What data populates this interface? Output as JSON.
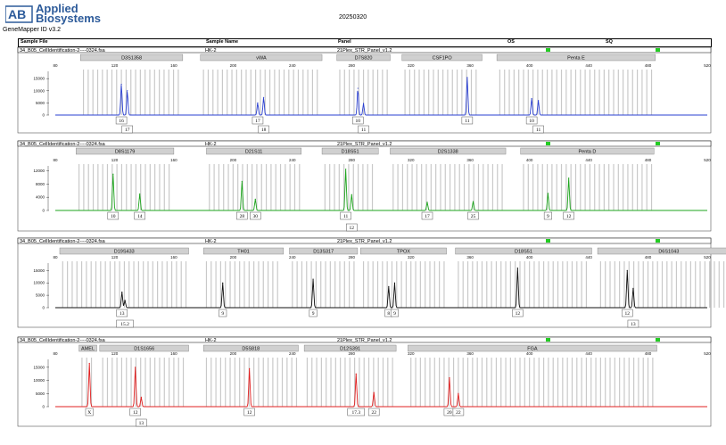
{
  "header": {
    "logo_text_1": "Applied",
    "logo_text_2": "Biosystems",
    "version": "GeneMapper ID v3.2",
    "date": "20250320",
    "columns": {
      "sample_file": "Sample File",
      "sample_name": "Sample Name",
      "panel": "Panel",
      "os": "OS",
      "sq": "SQ"
    }
  },
  "colors": {
    "blue": "#2a3fd1",
    "green": "#1ea51e",
    "black": "#111111",
    "red": "#e02020",
    "bin": "#c9c9c9",
    "quality": "#22cc22"
  },
  "chart_data": [
    {
      "type": "line",
      "dye": "blue",
      "sample_file": "34_B05_CellIdentification-2----0324.fsa",
      "sample_name": "HK-2",
      "panel": "21Plex_STR_Panel_v1.2",
      "x_ticks": [
        "80",
        "120",
        "160",
        "200",
        "240",
        "280",
        "320",
        "360",
        "400",
        "440",
        "480",
        "520"
      ],
      "xlim": [
        80,
        520
      ],
      "y_ticks": [
        "15000",
        "10000",
        "5000",
        "0"
      ],
      "ylim": [
        0,
        18000
      ],
      "markers": [
        {
          "name": "D3S1358",
          "start": 97,
          "end": 166
        },
        {
          "name": "vWA",
          "start": 178,
          "end": 260
        },
        {
          "name": "D7S820",
          "start": 270,
          "end": 306
        },
        {
          "name": "CSF1PO",
          "start": 314,
          "end": 368
        },
        {
          "name": "Penta E",
          "start": 378,
          "end": 485
        }
      ],
      "peaks": [
        {
          "x": 124.6,
          "y": 12700,
          "label": "16"
        },
        {
          "x": 128.6,
          "y": 10000,
          "label": "17"
        },
        {
          "x": 216.6,
          "y": 5000,
          "label": "17"
        },
        {
          "x": 220.6,
          "y": 7200,
          "label": "18"
        },
        {
          "x": 284.2,
          "y": 11000,
          "label": "10"
        },
        {
          "x": 288.0,
          "y": 4800,
          "label": "11"
        },
        {
          "x": 358.0,
          "y": 15500,
          "label": "11"
        },
        {
          "x": 401.5,
          "y": 6800,
          "label": "10"
        },
        {
          "x": 406.0,
          "y": 6000,
          "label": "11"
        }
      ],
      "allele_labels": [
        {
          "x": 124.6,
          "row": 1,
          "label": "16"
        },
        {
          "x": 128.6,
          "row": 2,
          "label": "17"
        },
        {
          "x": 216.6,
          "row": 1,
          "label": "17"
        },
        {
          "x": 220.6,
          "row": 2,
          "label": "18"
        },
        {
          "x": 284.2,
          "row": 1,
          "label": "10"
        },
        {
          "x": 288.0,
          "row": 2,
          "label": "11"
        },
        {
          "x": 358.0,
          "row": 1,
          "label": "11"
        },
        {
          "x": 401.5,
          "row": 1,
          "label": "10"
        },
        {
          "x": 406.0,
          "row": 2,
          "label": "11"
        }
      ]
    },
    {
      "type": "line",
      "dye": "green",
      "sample_file": "34_B05_CellIdentification-2----0324.fsa",
      "sample_name": "HK-2",
      "panel": "21Plex_STR_Panel_v1.2",
      "x_ticks": [
        "80",
        "120",
        "160",
        "200",
        "240",
        "280",
        "320",
        "360",
        "400",
        "440",
        "480",
        "520"
      ],
      "xlim": [
        80,
        520
      ],
      "y_ticks": [
        "12000",
        "8000",
        "4000",
        "0"
      ],
      "ylim": [
        0,
        13500
      ],
      "markers": [
        {
          "name": "D8S1179",
          "start": 94,
          "end": 160
        },
        {
          "name": "D21S11",
          "start": 182,
          "end": 246
        },
        {
          "name": "D18S51",
          "start": 260,
          "end": 298
        },
        {
          "name": "D2S1338",
          "start": 306,
          "end": 384
        },
        {
          "name": "Penta D",
          "start": 394,
          "end": 484
        }
      ],
      "peaks": [
        {
          "x": 119.0,
          "y": 11000,
          "label": "10"
        },
        {
          "x": 137.0,
          "y": 5000,
          "label": "14"
        },
        {
          "x": 206.0,
          "y": 8800,
          "label": "28"
        },
        {
          "x": 215.0,
          "y": 3400,
          "label": "30"
        },
        {
          "x": 276.0,
          "y": 12500,
          "label": "11"
        },
        {
          "x": 280.0,
          "y": 4800,
          "label": "12"
        },
        {
          "x": 331.0,
          "y": 2500,
          "label": "17"
        },
        {
          "x": 362.0,
          "y": 2700,
          "label": "25"
        },
        {
          "x": 412.5,
          "y": 5200,
          "label": "9"
        },
        {
          "x": 426.5,
          "y": 9800,
          "label": "12"
        }
      ],
      "allele_labels": [
        {
          "x": 119.0,
          "row": 1,
          "label": "10"
        },
        {
          "x": 137.0,
          "row": 1,
          "label": "14"
        },
        {
          "x": 206.0,
          "row": 1,
          "label": "28"
        },
        {
          "x": 215.0,
          "row": 1,
          "label": "30"
        },
        {
          "x": 276.0,
          "row": 1,
          "label": "11"
        },
        {
          "x": 280.0,
          "row": 2,
          "label": "12"
        },
        {
          "x": 331.0,
          "row": 1,
          "label": "17"
        },
        {
          "x": 362.0,
          "row": 1,
          "label": "25"
        },
        {
          "x": 412.5,
          "row": 1,
          "label": "9"
        },
        {
          "x": 426.5,
          "row": 1,
          "label": "12"
        }
      ]
    },
    {
      "type": "line",
      "dye": "black",
      "sample_file": "34_B05_CellIdentification-2----0324.fsa",
      "sample_name": "HK-2",
      "panel": "21Plex_STR_Panel_v1.2",
      "x_ticks": [
        "80",
        "120",
        "160",
        "200",
        "240",
        "280",
        "320",
        "360",
        "400",
        "440",
        "480",
        "520"
      ],
      "xlim": [
        80,
        520
      ],
      "y_ticks": [
        "15000",
        "10000",
        "5000",
        "0"
      ],
      "ylim": [
        0,
        18000
      ],
      "markers": [
        {
          "name": "D19S433",
          "start": 83,
          "end": 170
        },
        {
          "name": "TH01",
          "start": 180,
          "end": 234
        },
        {
          "name": "D13S317",
          "start": 238,
          "end": 284
        },
        {
          "name": "TPOX",
          "start": 286,
          "end": 344
        },
        {
          "name": "D18S51",
          "start": 350,
          "end": 442
        },
        {
          "name": "D6S1043",
          "start": 446,
          "end": 542
        }
      ],
      "peaks": [
        {
          "x": 125.0,
          "y": 6300,
          "label": "13"
        },
        {
          "x": 127.0,
          "y": 3000,
          "label": "15.2"
        },
        {
          "x": 193.0,
          "y": 10000,
          "label": "9"
        },
        {
          "x": 254.0,
          "y": 11500,
          "label": "9"
        },
        {
          "x": 305.0,
          "y": 8500,
          "label": "8"
        },
        {
          "x": 309.0,
          "y": 10000,
          "label": "9"
        },
        {
          "x": 392.0,
          "y": 16000,
          "label": "12"
        },
        {
          "x": 466.0,
          "y": 15000,
          "label": "12"
        },
        {
          "x": 470.0,
          "y": 7800,
          "label": "13"
        }
      ],
      "allele_labels": [
        {
          "x": 125.0,
          "row": 1,
          "label": "13"
        },
        {
          "x": 127.0,
          "row": 2,
          "label": "15.2"
        },
        {
          "x": 193.0,
          "row": 1,
          "label": "9"
        },
        {
          "x": 254.0,
          "row": 1,
          "label": "9"
        },
        {
          "x": 305.0,
          "row": 1,
          "label": "8"
        },
        {
          "x": 309.0,
          "row": 1,
          "label": "9"
        },
        {
          "x": 392.0,
          "row": 1,
          "label": "12"
        },
        {
          "x": 466.0,
          "row": 1,
          "label": "12"
        },
        {
          "x": 470.0,
          "row": 2,
          "label": "13"
        }
      ]
    },
    {
      "type": "line",
      "dye": "red",
      "sample_file": "34_B05_CellIdentification-2----0324.fsa",
      "sample_name": "HK-2",
      "panel": "21Plex_STR_Panel_v1.2",
      "x_ticks": [
        "80",
        "120",
        "160",
        "200",
        "240",
        "280",
        "320",
        "360",
        "400",
        "440",
        "480",
        "520"
      ],
      "xlim": [
        80,
        520
      ],
      "y_ticks": [
        "15000",
        "10000",
        "5000",
        "0"
      ],
      "ylim": [
        0,
        18000
      ],
      "markers": [
        {
          "name": "AMEL",
          "start": 96,
          "end": 108
        },
        {
          "name": "D1S1656",
          "start": 110,
          "end": 170
        },
        {
          "name": "D5S818",
          "start": 180,
          "end": 244
        },
        {
          "name": "D12S391",
          "start": 248,
          "end": 310
        },
        {
          "name": "FGA",
          "start": 318,
          "end": 486
        }
      ],
      "peaks": [
        {
          "x": 103.0,
          "y": 16500,
          "label": "X"
        },
        {
          "x": 134.0,
          "y": 15000,
          "label": "12"
        },
        {
          "x": 138.0,
          "y": 3600,
          "label": "13"
        },
        {
          "x": 211.0,
          "y": 14500,
          "label": "12"
        },
        {
          "x": 283.0,
          "y": 12500,
          "label": "17.3"
        },
        {
          "x": 295.0,
          "y": 5400,
          "label": "22"
        },
        {
          "x": 346.0,
          "y": 11000,
          "label": "20"
        },
        {
          "x": 352.0,
          "y": 5000,
          "label": "22"
        }
      ],
      "allele_labels": [
        {
          "x": 103.0,
          "row": 1,
          "label": "X"
        },
        {
          "x": 134.0,
          "row": 1,
          "label": "12"
        },
        {
          "x": 138.0,
          "row": 2,
          "label": "13"
        },
        {
          "x": 211.0,
          "row": 1,
          "label": "12"
        },
        {
          "x": 283.0,
          "row": 1,
          "label": "17.3"
        },
        {
          "x": 295.0,
          "row": 1,
          "label": "22"
        },
        {
          "x": 346.0,
          "row": 1,
          "label": "20"
        },
        {
          "x": 352.0,
          "row": 1,
          "label": "22"
        }
      ]
    }
  ]
}
